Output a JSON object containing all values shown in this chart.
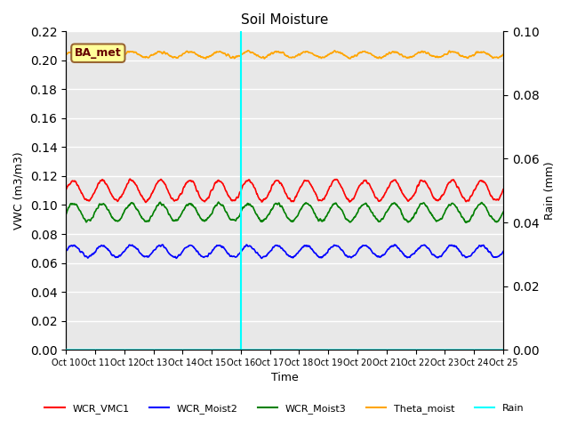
{
  "title": "Soil Moisture",
  "ylabel_left": "VWC (m3/m3)",
  "ylabel_right": "Rain (mm)",
  "xlabel": "Time",
  "annotation_text": "BA_met",
  "annotation_bg": "#FFFF99",
  "annotation_border": "#996633",
  "annotation_text_color": "#660000",
  "vline_x": 6.0,
  "vline_color": "cyan",
  "vline_lw": 1.5,
  "ylim_left": [
    0.0,
    0.22
  ],
  "ylim_right": [
    0.0,
    0.1
  ],
  "yticks_left": [
    0.0,
    0.02,
    0.04,
    0.06,
    0.08,
    0.1,
    0.12,
    0.14,
    0.16,
    0.18,
    0.2,
    0.22
  ],
  "yticks_right": [
    0.0,
    0.02,
    0.04,
    0.06,
    0.08,
    0.1
  ],
  "x_tick_labels": [
    "Oct 10",
    "Oct 11",
    "Oct 12",
    "Oct 13",
    "Oct 14",
    "Oct 15",
    "Oct 16",
    "Oct 17",
    "Oct 18",
    "Oct 19",
    "Oct 20",
    "Oct 21",
    "Oct 22",
    "Oct 23",
    "Oct 24",
    "Oct 25"
  ],
  "n_points": 1440,
  "series": {
    "WCR_VMC1": {
      "color": "red",
      "mean": 0.11,
      "amp": 0.007,
      "freq": 1.0,
      "noise": 0.001
    },
    "WCR_Moist2": {
      "color": "blue",
      "mean": 0.068,
      "amp": 0.004,
      "freq": 1.0,
      "noise": 0.0008
    },
    "WCR_Moist3": {
      "color": "green",
      "mean": 0.095,
      "amp": 0.006,
      "freq": 1.0,
      "noise": 0.001
    },
    "Theta_moist": {
      "color": "orange",
      "mean": 0.204,
      "amp": 0.002,
      "freq": 1.0,
      "noise": 0.0008
    },
    "Rain": {
      "color": "cyan",
      "mean": 0.0,
      "amp": 0.0,
      "freq": 1.0,
      "noise": 0.0
    }
  },
  "bg_color": "#e8e8e8",
  "grid_color": "white",
  "legend_items": [
    "WCR_VMC1",
    "WCR_Moist2",
    "WCR_Moist3",
    "Theta_moist",
    "Rain"
  ],
  "legend_colors": [
    "red",
    "blue",
    "green",
    "orange",
    "cyan"
  ],
  "fig_width": 6.4,
  "fig_height": 4.8,
  "dpi": 100
}
